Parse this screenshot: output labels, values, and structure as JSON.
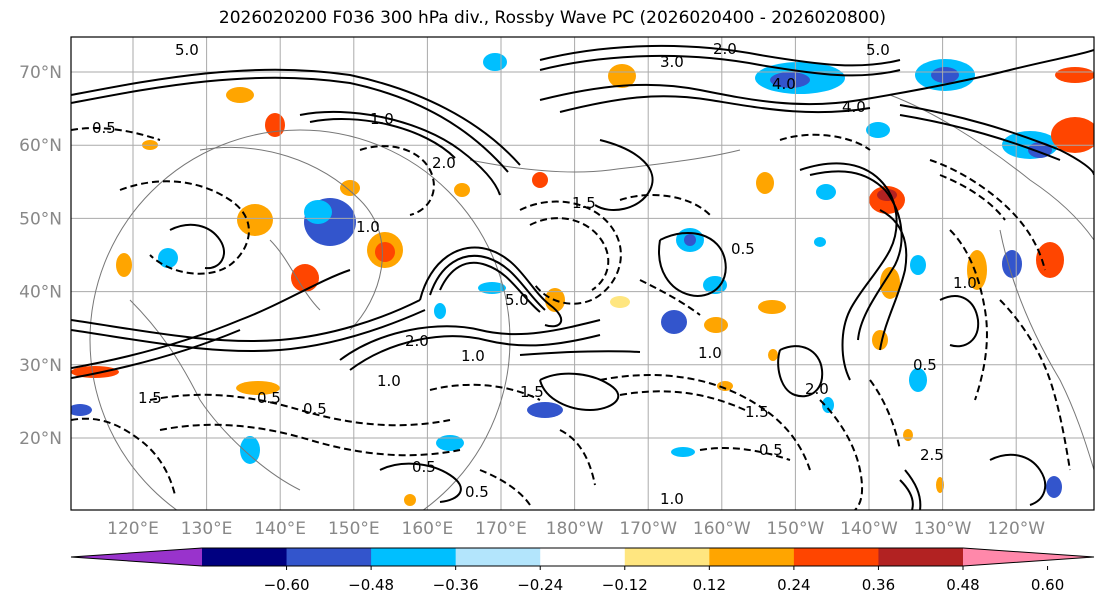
{
  "title": "2026020200 F036 300 hPa div., Rossby Wave PC (2026020400 - 2026020800)",
  "map": {
    "lat_labels": [
      "70°N",
      "60°N",
      "50°N",
      "40°N",
      "30°N",
      "20°N"
    ],
    "lon_labels": [
      "120°E",
      "130°E",
      "140°E",
      "150°E",
      "160°E",
      "170°E",
      "180°W",
      "170°W",
      "160°W",
      "150°W",
      "140°W",
      "130°W",
      "120°W"
    ],
    "contour_labels": [
      "5.0",
      "2.0",
      "3.0",
      "4.0",
      "4.0",
      "5.0",
      "0.5",
      "1.0",
      "1.5",
      "2.0",
      "5.0",
      "1.0",
      "0.5",
      "2.0",
      "1.0",
      "1.5",
      "0.5",
      "1.5",
      "0.5",
      "1.0",
      "0.5",
      "1.0",
      "2.0",
      "0.5",
      "1.5",
      "2.5",
      "0.5",
      "0.5",
      "1.0",
      "1.0"
    ]
  },
  "colorbar": {
    "ticks": [
      "−0.60",
      "−0.48",
      "−0.36",
      "−0.24",
      "−0.12",
      "0.12",
      "0.24",
      "0.36",
      "0.48",
      "0.60"
    ],
    "colors": [
      "#9933cc",
      "#000080",
      "#3355cc",
      "#00bfff",
      "#b3e5fc",
      "#ffffff",
      "#ffe680",
      "#ffa500",
      "#ff4500",
      "#b22222",
      "#ff88aa"
    ]
  }
}
